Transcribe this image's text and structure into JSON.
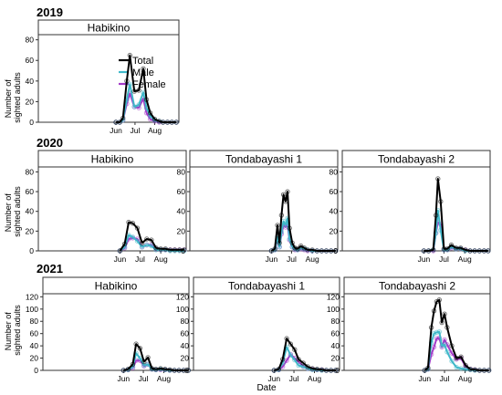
{
  "colors": {
    "total": "#000000",
    "male": "#3fb8c9",
    "female": "#a43ac8"
  },
  "legend": {
    "total": "Total",
    "male": "Male",
    "female": "Female"
  },
  "ylabel": "Number of\nsighted adults",
  "xlabel": "Date",
  "chart_data": [
    {
      "type": "line",
      "year": "2019",
      "site": "Habikino",
      "ylim": [
        0,
        85
      ],
      "yticks": [
        0,
        20,
        40,
        60,
        80
      ],
      "xticks": [
        "Jun",
        "Jul",
        "Aug"
      ],
      "x": [
        "06-01",
        "06-07",
        "06-12",
        "06-18",
        "06-23",
        "06-30",
        "07-07",
        "07-14",
        "07-19",
        "07-25",
        "08-01",
        "08-08",
        "08-14",
        "08-21",
        "08-28",
        "09-04"
      ],
      "series": [
        {
          "name": "Total",
          "values": [
            0,
            0,
            4,
            40,
            65,
            30,
            31,
            52,
            22,
            9,
            3,
            1,
            0,
            0,
            0,
            0
          ]
        },
        {
          "name": "Male",
          "values": [
            0,
            0,
            2,
            22,
            37,
            15,
            17,
            29,
            14,
            6,
            2,
            1,
            0,
            0,
            0,
            0
          ]
        },
        {
          "name": "Female",
          "values": [
            0,
            0,
            2,
            18,
            28,
            15,
            14,
            23,
            9,
            3,
            1,
            0,
            0,
            0,
            0,
            0
          ]
        }
      ]
    },
    {
      "type": "line",
      "year": "2020",
      "site": "Habikino",
      "ylim": [
        0,
        85
      ],
      "yticks": [
        0,
        20,
        40,
        60,
        80
      ],
      "xticks": [
        "Jun",
        "Jul",
        "Aug"
      ],
      "x": [
        "06-01",
        "06-08",
        "06-14",
        "06-20",
        "06-27",
        "07-04",
        "07-11",
        "07-18",
        "07-25",
        "08-01",
        "08-08",
        "08-15",
        "08-22",
        "08-29",
        "09-05"
      ],
      "series": [
        {
          "name": "Total",
          "values": [
            0,
            7,
            29,
            28,
            23,
            8,
            12,
            11,
            3,
            2,
            2,
            1,
            1,
            1,
            1
          ]
        },
        {
          "name": "Male",
          "values": [
            0,
            4,
            16,
            14,
            10,
            4,
            6,
            5,
            1,
            1,
            1,
            0,
            0,
            0,
            0
          ]
        },
        {
          "name": "Female",
          "values": [
            0,
            3,
            12,
            13,
            12,
            4,
            6,
            6,
            2,
            1,
            1,
            1,
            1,
            1,
            1
          ]
        }
      ]
    },
    {
      "type": "line",
      "year": "2020",
      "site": "Tondabayashi 1",
      "ylim": [
        0,
        85
      ],
      "yticks": [
        0,
        20,
        40,
        60,
        80
      ],
      "xticks": [
        "Jun",
        "Jul",
        "Aug"
      ],
      "x": [
        "06-01",
        "06-06",
        "06-10",
        "06-13",
        "06-16",
        "06-19",
        "06-22",
        "06-25",
        "06-28",
        "07-02",
        "07-06",
        "07-10",
        "07-15",
        "07-20",
        "07-25",
        "08-01",
        "08-08",
        "08-15",
        "08-22",
        "08-29",
        "09-05"
      ],
      "series": [
        {
          "name": "Total",
          "values": [
            0,
            2,
            26,
            8,
            36,
            57,
            50,
            60,
            23,
            8,
            3,
            2,
            5,
            3,
            1,
            1,
            0,
            0,
            0,
            0,
            0
          ]
        },
        {
          "name": "Male",
          "values": [
            0,
            1,
            14,
            4,
            19,
            30,
            26,
            33,
            12,
            4,
            2,
            1,
            3,
            2,
            1,
            0,
            0,
            0,
            0,
            0,
            0
          ]
        },
        {
          "name": "Female",
          "values": [
            0,
            1,
            12,
            4,
            17,
            26,
            24,
            27,
            11,
            4,
            1,
            1,
            2,
            1,
            0,
            0,
            0,
            0,
            0,
            0,
            0
          ]
        }
      ]
    },
    {
      "type": "line",
      "year": "2020",
      "site": "Tondabayashi 2",
      "ylim": [
        0,
        85
      ],
      "yticks": [
        0,
        20,
        40,
        60,
        80
      ],
      "xticks": [
        "Jun",
        "Jul",
        "Aug"
      ],
      "x": [
        "06-01",
        "06-08",
        "06-15",
        "06-19",
        "06-22",
        "06-26",
        "07-01",
        "07-06",
        "07-12",
        "07-19",
        "07-26",
        "08-02",
        "08-09",
        "08-16",
        "08-23",
        "08-30",
        "09-05"
      ],
      "series": [
        {
          "name": "Total",
          "values": [
            0,
            0,
            1,
            36,
            73,
            50,
            2,
            2,
            6,
            3,
            3,
            1,
            0,
            0,
            0,
            0,
            0
          ]
        },
        {
          "name": "Male",
          "values": [
            0,
            0,
            1,
            18,
            41,
            21,
            1,
            1,
            4,
            2,
            2,
            0,
            0,
            0,
            0,
            0,
            0
          ]
        },
        {
          "name": "Female",
          "values": [
            0,
            0,
            0,
            18,
            29,
            27,
            1,
            1,
            3,
            2,
            2,
            1,
            0,
            0,
            0,
            0,
            0
          ]
        }
      ]
    },
    {
      "type": "line",
      "year": "2021",
      "site": "Habikino",
      "ylim": [
        0,
        125
      ],
      "yticks": [
        0,
        20,
        40,
        60,
        80,
        100,
        120
      ],
      "xticks": [
        "Jun",
        "Jul",
        "Aug"
      ],
      "x": [
        "06-01",
        "06-08",
        "06-15",
        "06-20",
        "06-26",
        "07-02",
        "07-08",
        "07-14",
        "07-20",
        "07-27",
        "08-03",
        "08-10",
        "08-17",
        "08-24",
        "08-31",
        "09-07"
      ],
      "series": [
        {
          "name": "Total",
          "values": [
            0,
            2,
            10,
            43,
            36,
            14,
            21,
            3,
            2,
            3,
            2,
            1,
            0,
            0,
            0,
            0
          ]
        },
        {
          "name": "Male",
          "values": [
            0,
            1,
            6,
            28,
            20,
            8,
            10,
            2,
            1,
            2,
            1,
            0,
            0,
            0,
            0,
            0
          ]
        },
        {
          "name": "Female",
          "values": [
            0,
            1,
            4,
            16,
            16,
            7,
            10,
            2,
            1,
            1,
            1,
            0,
            0,
            0,
            0,
            0
          ]
        }
      ]
    },
    {
      "type": "line",
      "year": "2021",
      "site": "Tondabayashi 1",
      "ylim": [
        0,
        125
      ],
      "yticks": [
        0,
        20,
        40,
        60,
        80,
        100,
        120
      ],
      "xticks": [
        "Jun",
        "Jul",
        "Aug"
      ],
      "x": [
        "06-01",
        "06-08",
        "06-14",
        "06-20",
        "06-26",
        "07-02",
        "07-08",
        "07-15",
        "07-22",
        "07-29",
        "08-05",
        "08-12",
        "08-19",
        "08-26",
        "09-02"
      ],
      "series": [
        {
          "name": "Total",
          "values": [
            0,
            2,
            18,
            52,
            43,
            34,
            18,
            12,
            6,
            3,
            2,
            1,
            0,
            0,
            0
          ]
        },
        {
          "name": "Male",
          "values": [
            0,
            1,
            12,
            38,
            25,
            17,
            8,
            6,
            3,
            1,
            1,
            0,
            0,
            0,
            0
          ]
        },
        {
          "name": "Female",
          "values": [
            0,
            1,
            6,
            16,
            26,
            20,
            14,
            7,
            3,
            2,
            1,
            1,
            0,
            0,
            0
          ]
        }
      ]
    },
    {
      "type": "line",
      "year": "2021",
      "site": "Tondabayashi 2",
      "ylim": [
        0,
        125
      ],
      "yticks": [
        0,
        20,
        40,
        60,
        80,
        100,
        120
      ],
      "xticks": [
        "Jun",
        "Jul",
        "Aug"
      ],
      "x": [
        "06-01",
        "06-06",
        "06-11",
        "06-15",
        "06-19",
        "06-23",
        "06-27",
        "07-01",
        "07-05",
        "07-12",
        "07-19",
        "07-26",
        "08-02",
        "08-09",
        "08-16",
        "08-23",
        "08-30",
        "09-06"
      ],
      "series": [
        {
          "name": "Total",
          "values": [
            0,
            4,
            70,
            97,
            112,
            115,
            78,
            92,
            70,
            40,
            20,
            22,
            8,
            2,
            1,
            0,
            0,
            0
          ]
        },
        {
          "name": "Male",
          "values": [
            0,
            2,
            45,
            60,
            62,
            63,
            40,
            42,
            30,
            15,
            5,
            3,
            2,
            1,
            0,
            0,
            0,
            0
          ]
        },
        {
          "name": "Female",
          "values": [
            0,
            2,
            26,
            38,
            52,
            53,
            38,
            50,
            42,
            28,
            18,
            20,
            6,
            2,
            1,
            0,
            0,
            0
          ]
        }
      ]
    }
  ]
}
